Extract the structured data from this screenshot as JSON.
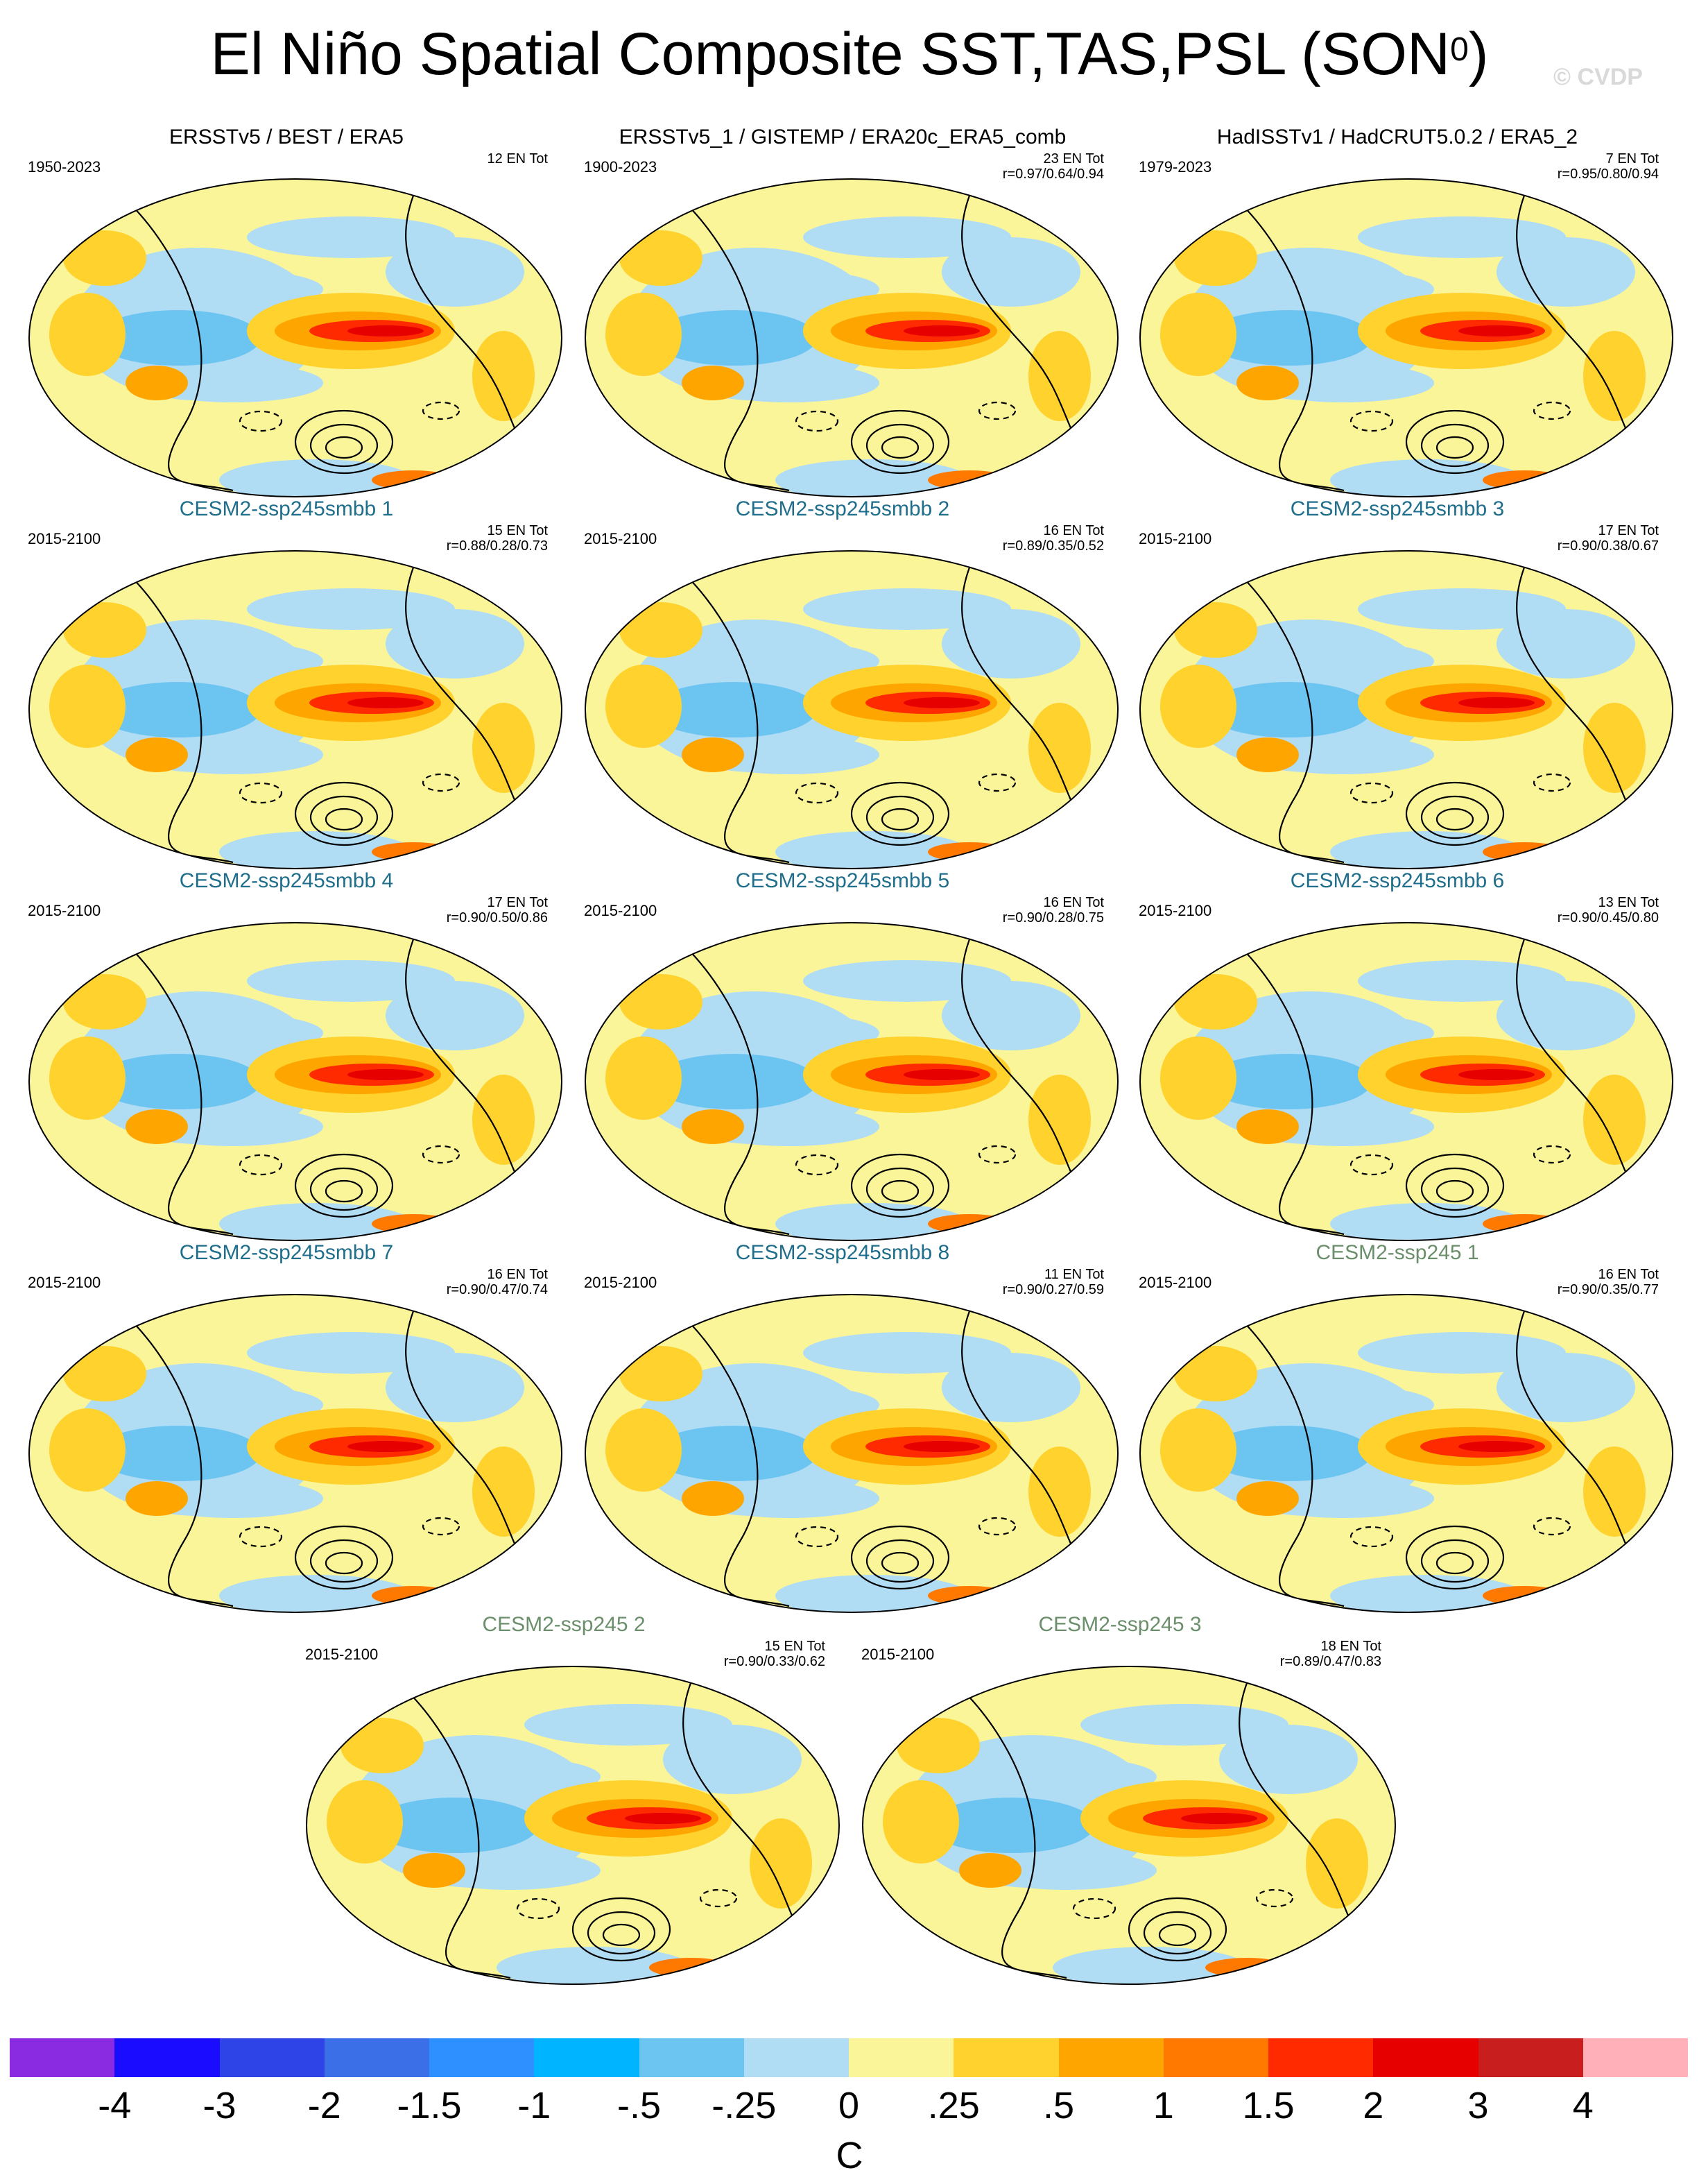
{
  "title": "El Niño Spatial Composite SST,TAS,PSL (SON",
  "title_superscript": "0",
  "title_suffix": ")",
  "watermark": "© CVDP",
  "colors": {
    "observations_title": "#000000",
    "smbb_title": "#1f6e8c",
    "ssp_title": "#6b8f6b",
    "land_outline": "#8c8c8c",
    "psl_contour": "#000000"
  },
  "panels": [
    {
      "title": "ERSSTv5 / BEST / ERA5",
      "group": "obs",
      "years": "1950-2023",
      "count": "12 EN Tot",
      "r": ""
    },
    {
      "title": "ERSSTv5_1 / GISTEMP / ERA20c_ERA5_comb",
      "group": "obs",
      "years": "1900-2023",
      "count": "23 EN Tot",
      "r": "r=0.97/0.64/0.94"
    },
    {
      "title": "HadISSTv1 / HadCRUT5.0.2 / ERA5_2",
      "group": "obs",
      "years": "1979-2023",
      "count": "7 EN Tot",
      "r": "r=0.95/0.80/0.94"
    },
    {
      "title": "CESM2-ssp245smbb 1",
      "group": "smbb",
      "years": "2015-2100",
      "count": "15 EN Tot",
      "r": "r=0.88/0.28/0.73"
    },
    {
      "title": "CESM2-ssp245smbb 2",
      "group": "smbb",
      "years": "2015-2100",
      "count": "16 EN Tot",
      "r": "r=0.89/0.35/0.52"
    },
    {
      "title": "CESM2-ssp245smbb 3",
      "group": "smbb",
      "years": "2015-2100",
      "count": "17 EN Tot",
      "r": "r=0.90/0.38/0.67"
    },
    {
      "title": "CESM2-ssp245smbb 4",
      "group": "smbb",
      "years": "2015-2100",
      "count": "17 EN Tot",
      "r": "r=0.90/0.50/0.86"
    },
    {
      "title": "CESM2-ssp245smbb 5",
      "group": "smbb",
      "years": "2015-2100",
      "count": "16 EN Tot",
      "r": "r=0.90/0.28/0.75"
    },
    {
      "title": "CESM2-ssp245smbb 6",
      "group": "smbb",
      "years": "2015-2100",
      "count": "13 EN Tot",
      "r": "r=0.90/0.45/0.80"
    },
    {
      "title": "CESM2-ssp245smbb 7",
      "group": "smbb",
      "years": "2015-2100",
      "count": "16 EN Tot",
      "r": "r=0.90/0.47/0.74"
    },
    {
      "title": "CESM2-ssp245smbb 8",
      "group": "smbb",
      "years": "2015-2100",
      "count": "11 EN Tot",
      "r": "r=0.90/0.27/0.59"
    },
    {
      "title": "CESM2-ssp245 1",
      "group": "ssp",
      "years": "2015-2100",
      "count": "16 EN Tot",
      "r": "r=0.90/0.35/0.77"
    },
    {
      "title": "CESM2-ssp245 2",
      "group": "ssp",
      "years": "2015-2100",
      "count": "15 EN Tot",
      "r": "r=0.90/0.33/0.62"
    },
    {
      "title": "CESM2-ssp245 3",
      "group": "ssp",
      "years": "2015-2100",
      "count": "18 EN Tot",
      "r": "r=0.89/0.47/0.83"
    }
  ],
  "colorbar": {
    "unit": "C",
    "colors": [
      "#8a2be2",
      "#1a0dff",
      "#2f44e6",
      "#3a6fe8",
      "#2e8fff",
      "#00b4ff",
      "#6cc4f0",
      "#b0dcf4",
      "#fbf59a",
      "#ffd22e",
      "#ffa500",
      "#ff7800",
      "#ff2a00",
      "#e60000",
      "#c81e1e",
      "#ffb0b8"
    ],
    "labels": [
      "-4",
      "-3",
      "-2",
      "-1.5",
      "-1",
      "-.5",
      "-.25",
      "0",
      ".25",
      ".5",
      "1",
      "1.5",
      "2",
      "3",
      "4"
    ]
  }
}
